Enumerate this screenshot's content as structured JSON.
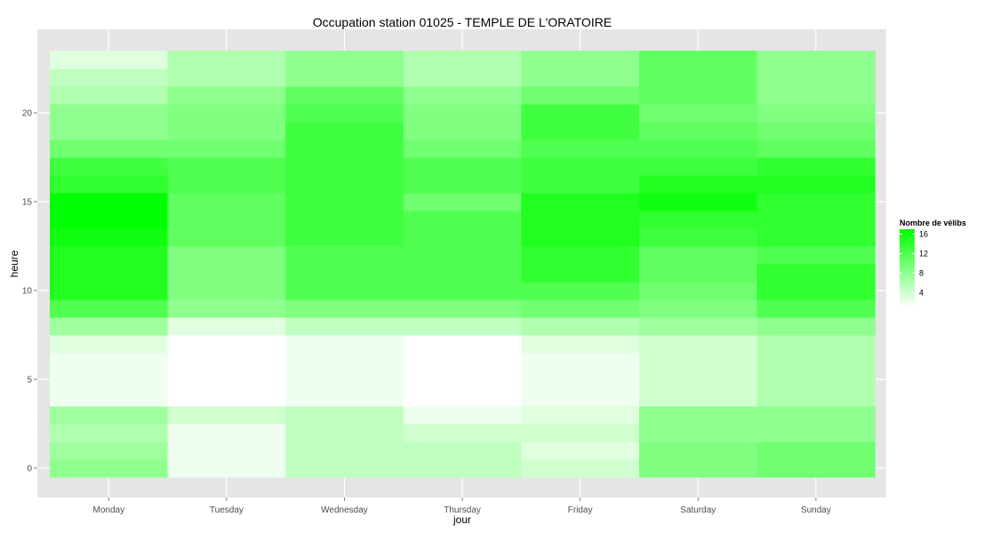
{
  "chart_data": {
    "type": "heatmap",
    "title": "Occupation station 01025 - TEMPLE DE L'ORATOIRE",
    "xlabel": "jour",
    "ylabel": "heure",
    "x_categories": [
      "Monday",
      "Tuesday",
      "Wednesday",
      "Thursday",
      "Friday",
      "Saturday",
      "Sunday"
    ],
    "y_values": [
      0,
      1,
      2,
      3,
      4,
      5,
      6,
      7,
      8,
      9,
      10,
      11,
      12,
      13,
      14,
      15,
      16,
      17,
      18,
      19,
      20,
      21,
      22,
      23
    ],
    "y_ticks": [
      0,
      5,
      10,
      15,
      20
    ],
    "ylim": [
      -0.5,
      23.5
    ],
    "grid": true,
    "legend": {
      "title": "Nombre de vélibs",
      "position": "right",
      "breaks": [
        4,
        8,
        12,
        16
      ],
      "range": [
        1,
        17
      ],
      "low_color": "#ffffff",
      "high_color": "#00ff00"
    },
    "values": [
      [
        8,
        2,
        5,
        5,
        4,
        9,
        10
      ],
      [
        7,
        2,
        5,
        5,
        3,
        9,
        10
      ],
      [
        6,
        2,
        5,
        4,
        4,
        8,
        8
      ],
      [
        7,
        4,
        5,
        2,
        3,
        8,
        8
      ],
      [
        2,
        1,
        2,
        1,
        2,
        4,
        6
      ],
      [
        2,
        1,
        2,
        1,
        2,
        4,
        6
      ],
      [
        2,
        1,
        2,
        1,
        2,
        4,
        6
      ],
      [
        3,
        1,
        2,
        1,
        3,
        4,
        6
      ],
      [
        7,
        3,
        5,
        5,
        6,
        7,
        8
      ],
      [
        12,
        8,
        9,
        9,
        10,
        9,
        12
      ],
      [
        15,
        9,
        12,
        12,
        12,
        10,
        14
      ],
      [
        15,
        9,
        12,
        12,
        14,
        11,
        14
      ],
      [
        15,
        9,
        12,
        12,
        14,
        11,
        12
      ],
      [
        16,
        11,
        13,
        12,
        15,
        13,
        14
      ],
      [
        17,
        11,
        13,
        12,
        15,
        14,
        14
      ],
      [
        17,
        11,
        13,
        10,
        15,
        16,
        14
      ],
      [
        14,
        12,
        13,
        12,
        13,
        15,
        15
      ],
      [
        13,
        12,
        13,
        12,
        13,
        13,
        14
      ],
      [
        10,
        10,
        13,
        10,
        12,
        12,
        11
      ],
      [
        8,
        9,
        13,
        9,
        13,
        11,
        10
      ],
      [
        8,
        9,
        12,
        9,
        13,
        10,
        9
      ],
      [
        6,
        8,
        11,
        8,
        10,
        11,
        8
      ],
      [
        5,
        6,
        8,
        6,
        8,
        11,
        8
      ],
      [
        3,
        6,
        8,
        6,
        8,
        11,
        8
      ]
    ]
  }
}
